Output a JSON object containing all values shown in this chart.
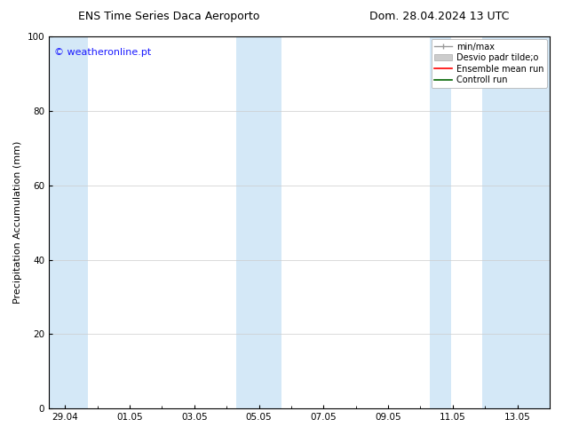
{
  "title_left": "ENS Time Series Daca Aeroporto",
  "title_right": "Dom. 28.04.2024 13 UTC",
  "ylabel": "Precipitation Accumulation (mm)",
  "watermark": "© weatheronline.pt",
  "ylim": [
    0,
    100
  ],
  "yticks": [
    0,
    20,
    40,
    60,
    80,
    100
  ],
  "xtick_labels": [
    "29.04",
    "01.05",
    "03.05",
    "05.05",
    "07.05",
    "09.05",
    "11.05",
    "13.05"
  ],
  "xtick_positions": [
    0,
    2,
    4,
    6,
    8,
    10,
    12,
    14
  ],
  "xmin": -0.5,
  "xmax": 15.0,
  "shaded_bands": [
    {
      "x_start": -0.5,
      "x_end": 0.7
    },
    {
      "x_start": 5.3,
      "x_end": 6.7
    },
    {
      "x_start": 11.3,
      "x_end": 11.95
    },
    {
      "x_start": 12.9,
      "x_end": 15.0
    }
  ],
  "shade_color": "#d4e8f7",
  "background_color": "#ffffff",
  "title_fontsize": 9,
  "label_fontsize": 8,
  "tick_fontsize": 7.5,
  "legend_fontsize": 7,
  "watermark_color": "#1a1aff",
  "watermark_fontsize": 8
}
